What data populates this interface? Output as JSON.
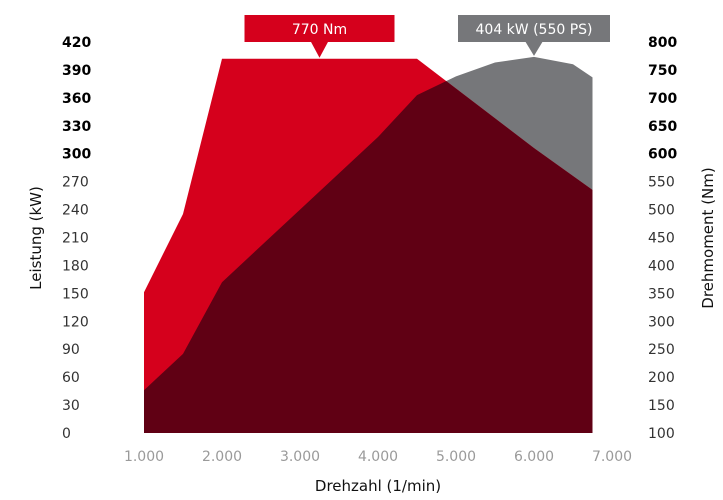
{
  "chart_data": {
    "type": "area",
    "title": "",
    "xlabel": "Drehzahl (1/min)",
    "ylabel_left": "Leistung (kW)",
    "ylabel_right": "Drehmoment (Nm)",
    "x_ticks": [
      "1.000",
      "2.000",
      "3.000",
      "4.000",
      "5.000",
      "6.000",
      "7.000"
    ],
    "y_left_ticks": [
      "0",
      "30",
      "60",
      "90",
      "120",
      "150",
      "180",
      "210",
      "240",
      "270",
      "300",
      "330",
      "360",
      "390",
      "420"
    ],
    "y_right_ticks": [
      "100",
      "150",
      "200",
      "250",
      "300",
      "350",
      "400",
      "450",
      "500",
      "550",
      "600",
      "650",
      "700",
      "750",
      "800"
    ],
    "xlim": [
      1000,
      7000
    ],
    "ylim_left": [
      0,
      420
    ],
    "ylim_right": [
      100,
      800
    ],
    "bold_from_left": 300,
    "bold_from_right": 600,
    "series": [
      {
        "name": "",
        "axis": "right",
        "color": "#d5001c",
        "points": [
          [
            1000,
            352
          ],
          [
            1500,
            492
          ],
          [
            2000,
            770
          ],
          [
            4500,
            770
          ],
          [
            6000,
            610
          ],
          [
            6750,
            535
          ]
        ]
      },
      {
        "name": "",
        "axis": "left",
        "color": "#76777a",
        "points": [
          [
            1000,
            46
          ],
          [
            1500,
            85
          ],
          [
            2000,
            162
          ],
          [
            3000,
            240
          ],
          [
            4000,
            318
          ],
          [
            4500,
            363
          ],
          [
            5000,
            383
          ],
          [
            5500,
            398
          ],
          [
            6000,
            404
          ],
          [
            6500,
            396
          ],
          [
            6750,
            382
          ]
        ]
      }
    ],
    "overlap_color": "#600014",
    "annotations": [
      {
        "text": "770 Nm",
        "color": "#d5001c"
      },
      {
        "text": "404 kW (550 PS)",
        "color": "#76777a"
      }
    ]
  }
}
